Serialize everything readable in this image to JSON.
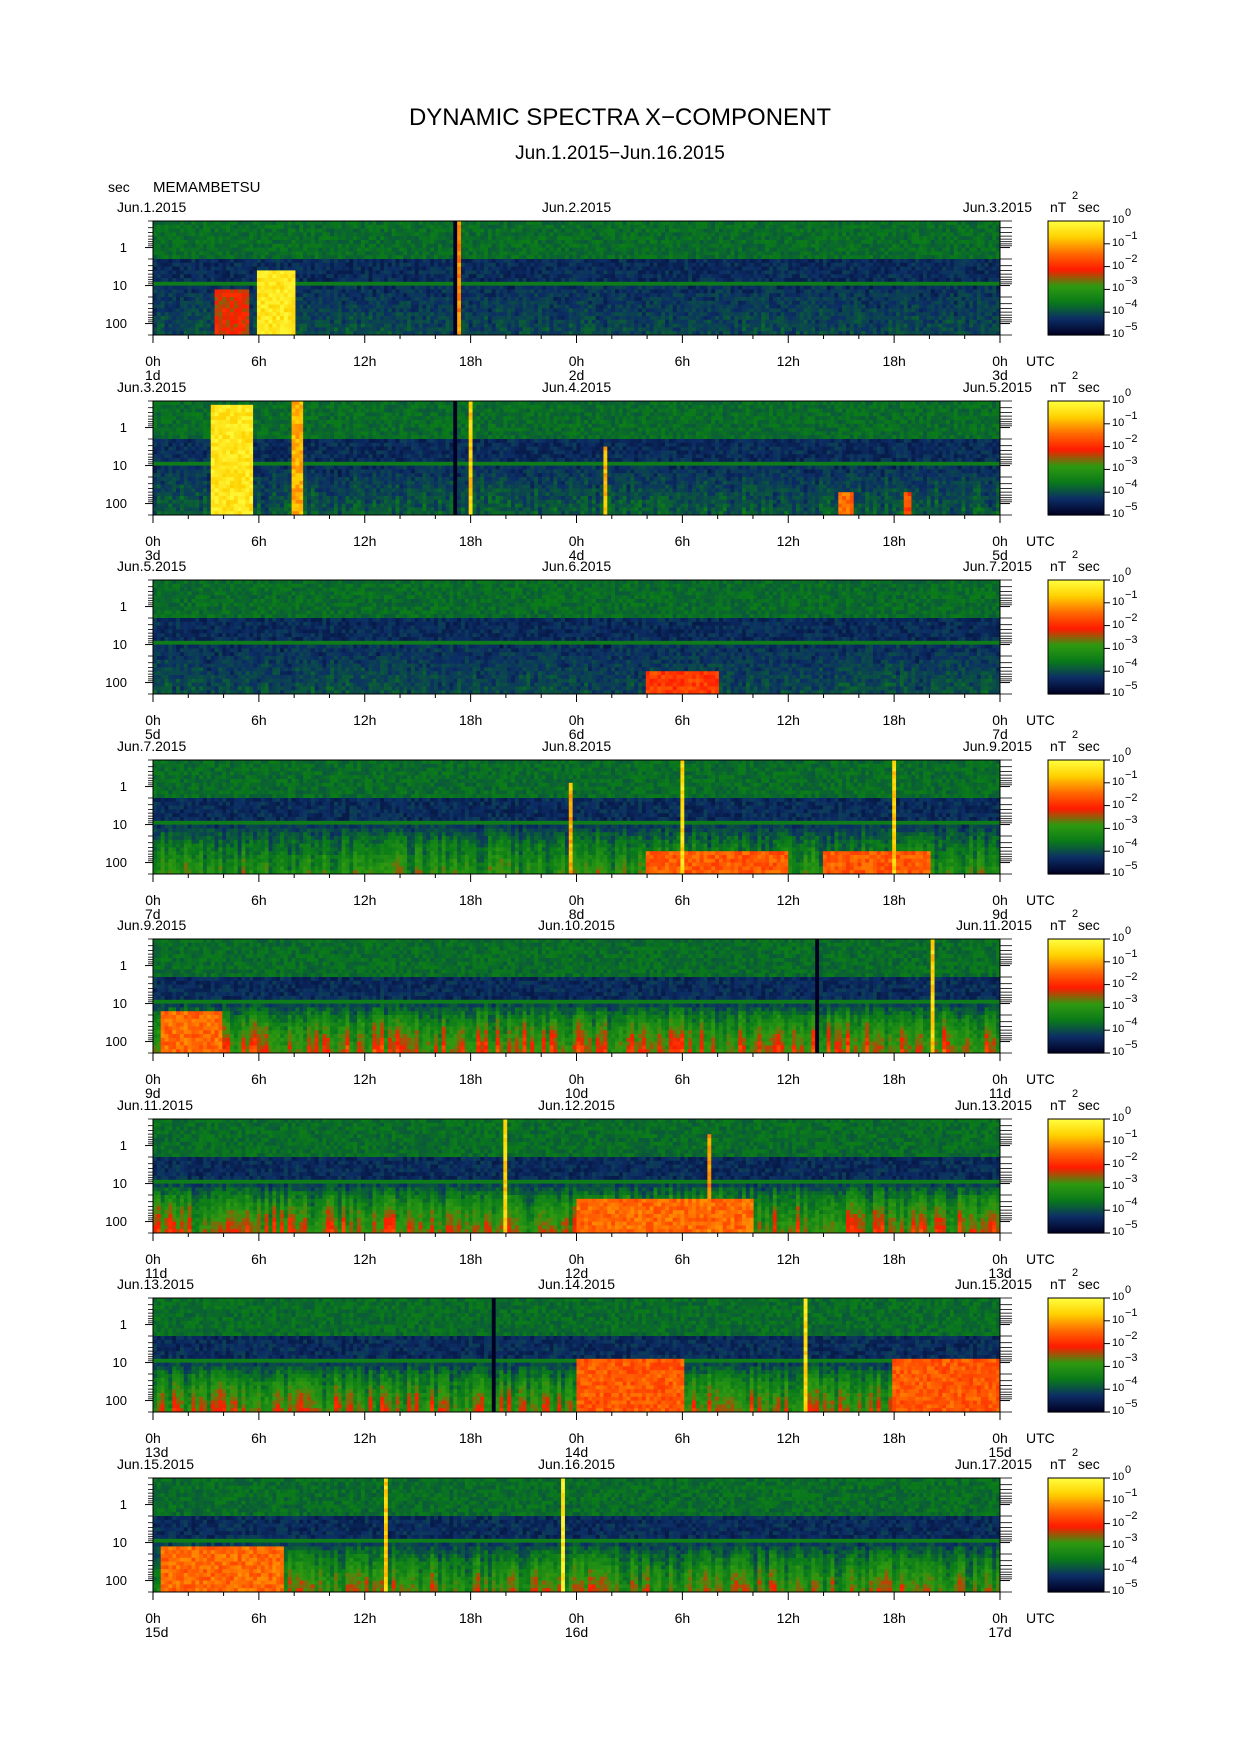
{
  "title": "DYNAMIC SPECTRA X−COMPONENT",
  "subtitle": "Jun.1.2015−Jun.16.2015",
  "station": "MEMAMBETSU",
  "period_unit": "sec",
  "chart_data": {
    "type": "heatmap",
    "title": "DYNAMIC SPECTRA X−COMPONENT",
    "subtitle": "Jun.1.2015−Jun.16.2015",
    "station": "MEMAMBETSU",
    "ylabel": "sec",
    "y_scale": "log",
    "y_ticks": [
      "1",
      "10",
      "100"
    ],
    "y_reversed": true,
    "x_tick_labels": [
      "0h",
      "6h",
      "12h",
      "18h",
      "0h",
      "6h",
      "12h",
      "18h",
      "0h"
    ],
    "time_zone": "UTC",
    "colorbar": {
      "unit": "nT",
      "unit_superscript": "2",
      "unit_suffix": "sec",
      "scale": "log",
      "tick_base": "10",
      "tick_exponents": [
        "0",
        "−1",
        "−2",
        "−3",
        "−4",
        "−5"
      ],
      "colors": [
        "#000022",
        "#0c2e66",
        "#0a7a1a",
        "#2e9a10",
        "#ff1a00",
        "#ff6a00",
        "#ffd000",
        "#ffff40"
      ]
    },
    "panels": [
      {
        "date_start": "Jun.1.2015",
        "date_mid": "Jun.2.2015",
        "date_end": "Jun.3.2015",
        "day_start": "1d",
        "day_mid": "2d",
        "day_end": "3d",
        "activity": 0.15,
        "events": [
          {
            "start": 6.0,
            "end": 8.1,
            "strength": 1.0,
            "top": 0.45
          },
          {
            "start": 17.2,
            "end": 17.4,
            "strength": 0.7,
            "top": 0.0
          },
          {
            "start": 3.5,
            "end": 5.5,
            "strength": 0.3,
            "top": 0.6
          }
        ],
        "gaps": [
          {
            "start": 17.0,
            "end": 17.2
          }
        ]
      },
      {
        "date_start": "Jun.3.2015",
        "date_mid": "Jun.4.2015",
        "date_end": "Jun.5.2015",
        "day_start": "3d",
        "day_mid": "4d",
        "day_end": "5d",
        "activity": 0.2,
        "events": [
          {
            "start": 3.3,
            "end": 5.6,
            "strength": 1.0,
            "top": 0.05
          },
          {
            "start": 7.8,
            "end": 8.4,
            "strength": 0.8,
            "top": 0.0
          },
          {
            "start": 17.9,
            "end": 18.1,
            "strength": 0.9,
            "top": 0.0
          },
          {
            "start": 23.9,
            "end": 24.1,
            "strength": 0.7,
            "top": 0.45
          },
          {
            "start": 25.6,
            "end": 25.8,
            "strength": 0.8,
            "top": 0.4
          },
          {
            "start": 38.8,
            "end": 39.6,
            "strength": 0.6,
            "top": 0.8
          },
          {
            "start": 42.5,
            "end": 43.0,
            "strength": 0.5,
            "top": 0.8
          }
        ],
        "gaps": [
          {
            "start": 17.0,
            "end": 17.3
          }
        ]
      },
      {
        "date_start": "Jun.5.2015",
        "date_mid": "Jun.6.2015",
        "date_end": "Jun.7.2015",
        "day_start": "5d",
        "day_mid": "6d",
        "day_end": "7d",
        "activity": 0.15,
        "events": [
          {
            "start": 28.0,
            "end": 32.0,
            "strength": 0.45,
            "top": 0.8
          }
        ],
        "gaps": []
      },
      {
        "date_start": "Jun.7.2015",
        "date_mid": "Jun.8.2015",
        "date_end": "Jun.9.2015",
        "day_start": "7d",
        "day_mid": "8d",
        "day_end": "9d",
        "activity": 0.45,
        "events": [
          {
            "start": 23.5,
            "end": 23.7,
            "strength": 0.8,
            "top": 0.2
          },
          {
            "start": 30.0,
            "end": 30.2,
            "strength": 0.95,
            "top": 0.0
          },
          {
            "start": 42.0,
            "end": 42.2,
            "strength": 0.9,
            "top": 0.0
          },
          {
            "start": 28.0,
            "end": 36.0,
            "strength": 0.55,
            "top": 0.8
          },
          {
            "start": 38.0,
            "end": 44.0,
            "strength": 0.55,
            "top": 0.8
          }
        ],
        "gaps": []
      },
      {
        "date_start": "Jun.9.2015",
        "date_mid": "Jun.10.2015",
        "date_end": "Jun.11.2015",
        "day_start": "9d",
        "day_mid": "10d",
        "day_end": "11d",
        "activity": 0.7,
        "events": [
          {
            "start": 44.0,
            "end": 44.2,
            "strength": 0.9,
            "top": 0.0
          },
          {
            "start": 0.5,
            "end": 4.0,
            "strength": 0.6,
            "top": 0.65
          }
        ],
        "gaps": [
          {
            "start": 37.5,
            "end": 37.7
          }
        ]
      },
      {
        "date_start": "Jun.11.2015",
        "date_mid": "Jun.12.2015",
        "date_end": "Jun.13.2015",
        "day_start": "11d",
        "day_mid": "12d",
        "day_end": "13d",
        "activity": 0.65,
        "events": [
          {
            "start": 19.8,
            "end": 20.0,
            "strength": 0.9,
            "top": 0.0
          },
          {
            "start": 31.5,
            "end": 31.7,
            "strength": 0.7,
            "top": 0.15
          },
          {
            "start": 24.0,
            "end": 34.0,
            "strength": 0.6,
            "top": 0.7
          }
        ],
        "gaps": []
      },
      {
        "date_start": "Jun.13.2015",
        "date_mid": "Jun.14.2015",
        "date_end": "Jun.15.2015",
        "day_start": "13d",
        "day_mid": "14d",
        "day_end": "15d",
        "activity": 0.6,
        "events": [
          {
            "start": 36.8,
            "end": 37.0,
            "strength": 0.95,
            "top": 0.0
          },
          {
            "start": 24.0,
            "end": 30.0,
            "strength": 0.55,
            "top": 0.55
          },
          {
            "start": 42.0,
            "end": 48.0,
            "strength": 0.55,
            "top": 0.55
          }
        ],
        "gaps": [
          {
            "start": 19.3,
            "end": 19.5
          }
        ]
      },
      {
        "date_start": "Jun.15.2015",
        "date_mid": "Jun.16.2015",
        "date_end": "Jun.17.2015",
        "day_start": "15d",
        "day_mid": "16d",
        "day_end": "17d",
        "activity": 0.55,
        "events": [
          {
            "start": 13.2,
            "end": 13.4,
            "strength": 0.9,
            "top": 0.0
          },
          {
            "start": 23.2,
            "end": 23.4,
            "strength": 1.0,
            "top": 0.0
          },
          {
            "start": 0.5,
            "end": 7.5,
            "strength": 0.6,
            "top": 0.6
          }
        ],
        "gaps": []
      }
    ]
  }
}
